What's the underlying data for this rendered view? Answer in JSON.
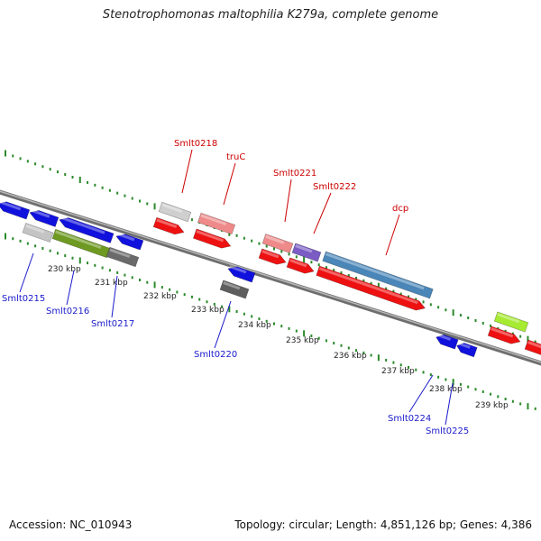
{
  "title": "Stenotrophomonas maltophilia K279a, complete genome",
  "footer": {
    "accession": "Accession: NC_010943",
    "summary": "Topology: circular; Length: 4,851,126 bp; Genes: 4,386"
  },
  "colors": {
    "backbone": "#8c8c8c",
    "tick": "#2a8a2a",
    "cds": "#ee1111",
    "label_top": "#cc0000",
    "label_bottom": "#1a1acc",
    "reverse_gene": "#1111dd"
  },
  "scale_labels": [
    "230 kbp",
    "231 kbp",
    "232 kbp",
    "233 kbp",
    "234 kbp",
    "235 kbp",
    "236 kbp",
    "237 kbp",
    "238 kbp",
    "239 kbp"
  ],
  "genes_top": [
    {
      "name": "Smlt0218"
    },
    {
      "name": "truC"
    },
    {
      "name": "Smlt0221"
    },
    {
      "name": "Smlt0222"
    },
    {
      "name": "dcp"
    }
  ],
  "genes_bottom": [
    {
      "name": "Smlt0215"
    },
    {
      "name": "Smlt0216"
    },
    {
      "name": "Smlt0217"
    },
    {
      "name": "Smlt0220"
    },
    {
      "name": "Smlt0224"
    },
    {
      "name": "Smlt0225"
    }
  ]
}
